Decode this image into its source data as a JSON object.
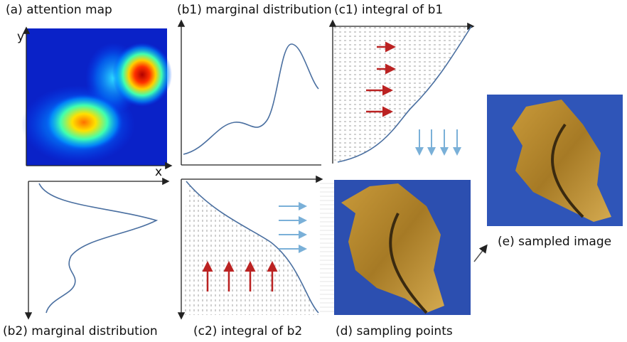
{
  "panels": [
    {
      "label": "(a) attention map"
    },
    {
      "label": "(b1) marginal distribution"
    },
    {
      "label": "(c1) integral of b1"
    },
    {
      "label": "(b2) marginal distribution"
    },
    {
      "label": "(c2) integral of b2"
    },
    {
      "label": "(d) sampling points"
    },
    {
      "label": "(e) sampled image"
    }
  ],
  "axes": {
    "x": "x",
    "y": "y"
  }
}
